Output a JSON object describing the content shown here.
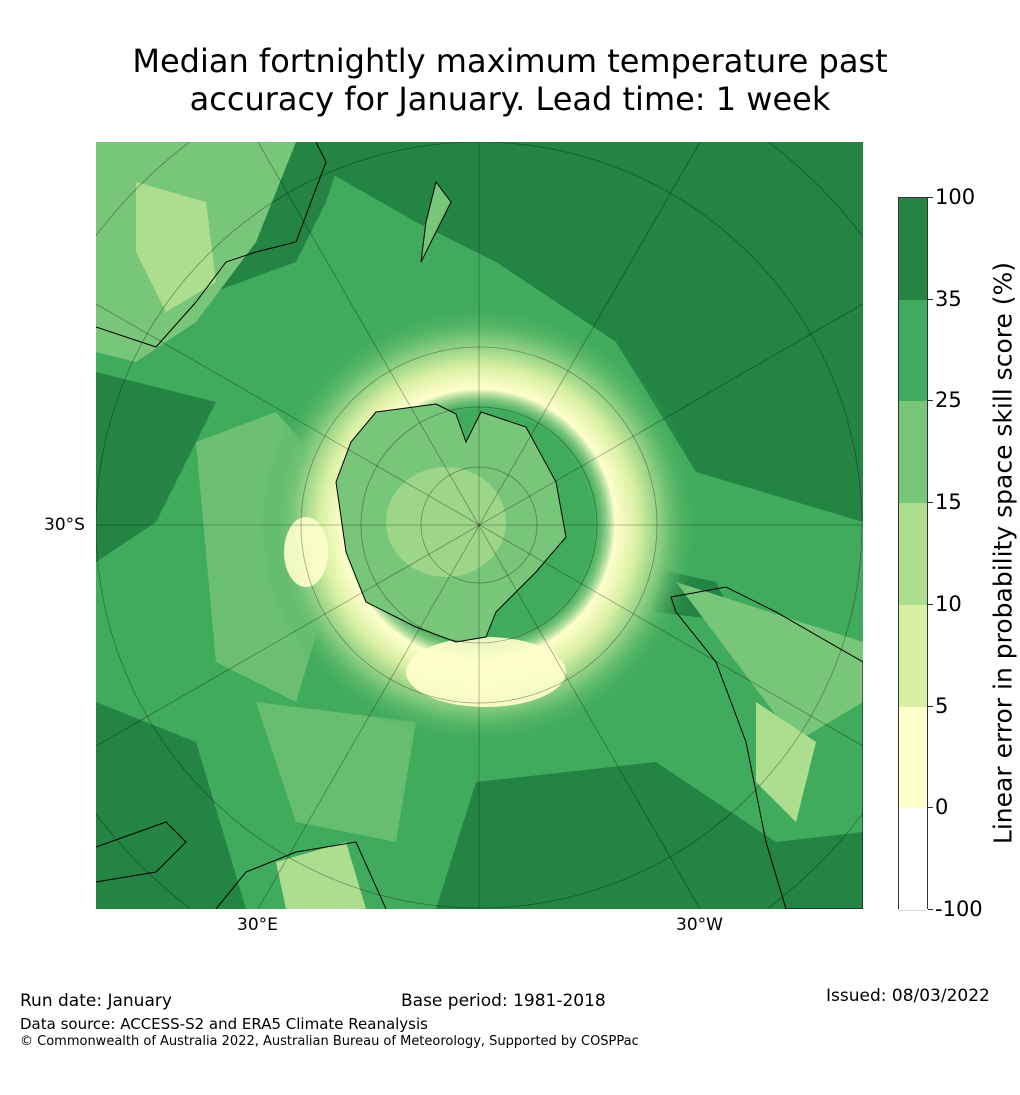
{
  "title_line1": "Median fortnightly maximum temperature past",
  "title_line2": "accuracy for January. Lead time: 1 week",
  "map": {
    "lat_label": "30°S",
    "lon_labels": [
      "30°E",
      "30°W"
    ]
  },
  "colorbar": {
    "label": "Linear error in probability space skill score (%)",
    "ticks": [
      "100",
      "35",
      "25",
      "15",
      "10",
      "5",
      "0",
      "-100"
    ],
    "colors": [
      "#238443",
      "#41ab5d",
      "#78c679",
      "#addd8e",
      "#d9f0a3",
      "#ffffcc",
      "#ffffff"
    ]
  },
  "footer": {
    "run_date": "Run date: January",
    "base_period": "Base period: 1981-2018",
    "issued": "Issued: 08/03/2022",
    "data_source": "Data source: ACCESS-S2 and ERA5 Climate Reanalysis",
    "copyright": "© Commonwealth of Australia 2022, Australian Bureau of Meteorology, Supported by COSPPac"
  }
}
